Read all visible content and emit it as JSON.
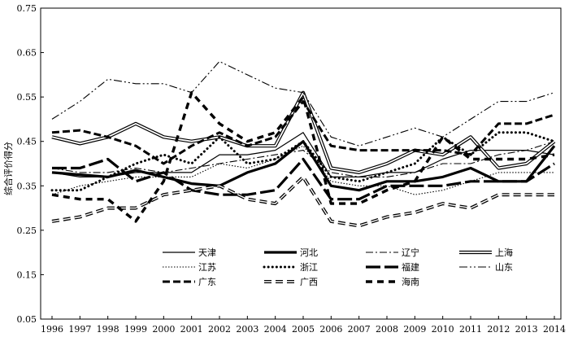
{
  "chart_data": {
    "type": "line",
    "title": "",
    "xlabel": "",
    "ylabel": "综合评价得分",
    "ylim": [
      0.05,
      0.75
    ],
    "yticks": [
      "0.05",
      "0.15",
      "0.25",
      "0.35",
      "0.45",
      "0.55",
      "0.65",
      "0.75"
    ],
    "ytick_values": [
      0.05,
      0.15,
      0.25,
      0.35,
      0.45,
      0.55,
      0.65,
      0.75
    ],
    "x": [
      "1996",
      "1997",
      "1998",
      "1999",
      "2000",
      "2001",
      "2002",
      "2003",
      "2004",
      "2005",
      "2006",
      "2007",
      "2008",
      "2009",
      "2010",
      "2011",
      "2012",
      "2013",
      "2014"
    ],
    "grid": false,
    "legend_position": "bottom-inside",
    "series": [
      {
        "name": "天津",
        "style": "thin-solid",
        "values": [
          0.38,
          0.37,
          0.37,
          0.38,
          0.38,
          0.38,
          0.42,
          0.42,
          0.43,
          0.47,
          0.37,
          0.37,
          0.38,
          0.38,
          0.41,
          0.43,
          0.43,
          0.43,
          0.42
        ]
      },
      {
        "name": "河北",
        "style": "thick-solid",
        "values": [
          0.38,
          0.375,
          0.37,
          0.385,
          0.37,
          0.355,
          0.35,
          0.38,
          0.4,
          0.45,
          0.35,
          0.34,
          0.36,
          0.36,
          0.37,
          0.39,
          0.36,
          0.36,
          0.44
        ]
      },
      {
        "name": "辽宁",
        "style": "dashdot-thin",
        "values": [
          0.39,
          0.38,
          0.38,
          0.39,
          0.38,
          0.39,
          0.4,
          0.41,
          0.42,
          0.43,
          0.38,
          0.37,
          0.37,
          0.38,
          0.4,
          0.4,
          0.42,
          0.43,
          0.45
        ]
      },
      {
        "name": "上海",
        "style": "double",
        "values": [
          0.46,
          0.445,
          0.46,
          0.49,
          0.46,
          0.45,
          0.46,
          0.44,
          0.44,
          0.56,
          0.39,
          0.38,
          0.4,
          0.43,
          0.42,
          0.46,
          0.39,
          0.4,
          0.45
        ]
      },
      {
        "name": "江苏",
        "style": "dotted-fine",
        "values": [
          0.33,
          0.35,
          0.36,
          0.37,
          0.37,
          0.37,
          0.4,
          0.39,
          0.41,
          0.44,
          0.36,
          0.35,
          0.35,
          0.33,
          0.34,
          0.36,
          0.38,
          0.38,
          0.38
        ]
      },
      {
        "name": "浙江",
        "style": "dotted-bold",
        "values": [
          0.34,
          0.34,
          0.37,
          0.4,
          0.42,
          0.4,
          0.46,
          0.4,
          0.41,
          0.45,
          0.37,
          0.36,
          0.38,
          0.4,
          0.46,
          0.42,
          0.47,
          0.47,
          0.45
        ]
      },
      {
        "name": "福建",
        "style": "longdash-bold",
        "values": [
          0.39,
          0.39,
          0.41,
          0.36,
          0.38,
          0.34,
          0.33,
          0.33,
          0.34,
          0.41,
          0.32,
          0.32,
          0.35,
          0.35,
          0.35,
          0.36,
          0.36,
          0.36,
          0.4
        ]
      },
      {
        "name": "山东",
        "style": "dashdotdot",
        "values": [
          0.5,
          0.54,
          0.59,
          0.58,
          0.58,
          0.56,
          0.63,
          0.6,
          0.57,
          0.56,
          0.46,
          0.44,
          0.46,
          0.48,
          0.46,
          0.5,
          0.54,
          0.54,
          0.56
        ]
      },
      {
        "name": "广东",
        "style": "dash-thick",
        "values": [
          0.47,
          0.475,
          0.46,
          0.44,
          0.4,
          0.44,
          0.47,
          0.44,
          0.46,
          0.54,
          0.44,
          0.43,
          0.43,
          0.43,
          0.43,
          0.42,
          0.49,
          0.49,
          0.51
        ]
      },
      {
        "name": "广西",
        "style": "dash-double",
        "values": [
          0.27,
          0.28,
          0.3,
          0.3,
          0.33,
          0.34,
          0.35,
          0.32,
          0.31,
          0.37,
          0.27,
          0.26,
          0.28,
          0.29,
          0.31,
          0.3,
          0.33,
          0.33,
          0.33
        ]
      },
      {
        "name": "海南",
        "style": "dash-bold",
        "values": [
          0.33,
          0.32,
          0.32,
          0.27,
          0.36,
          0.56,
          0.49,
          0.45,
          0.47,
          0.55,
          0.31,
          0.31,
          0.34,
          0.36,
          0.46,
          0.41,
          0.41,
          0.41,
          0.42
        ]
      }
    ]
  }
}
